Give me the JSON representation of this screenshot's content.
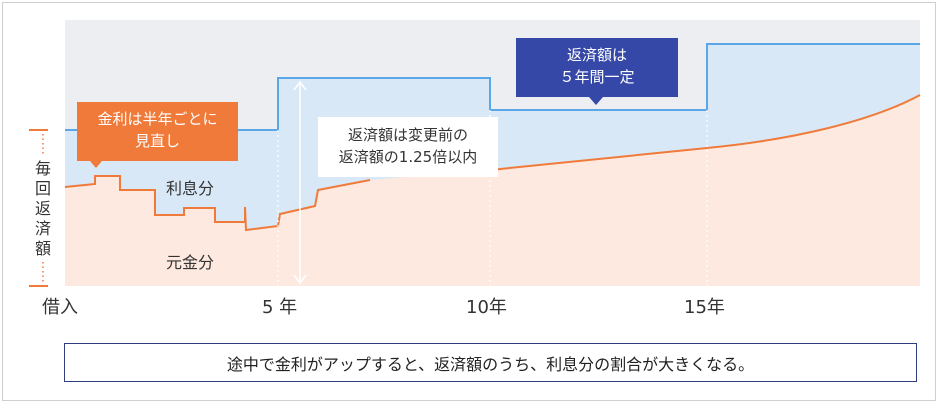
{
  "vertical_axis_label": [
    "毎",
    "回",
    "返",
    "済",
    "額"
  ],
  "region_labels": {
    "interest": "利息分",
    "principal": "元金分"
  },
  "x_axis_labels": [
    "借入",
    "5 年",
    "10年",
    "15年"
  ],
  "callouts": {
    "rate_review": [
      "金利は半年ごとに",
      "見直し"
    ],
    "fixed_payment": [
      "返済額は",
      "５年間一定"
    ],
    "cap_note": [
      "返済額は変更前の",
      "返済額の1.25倍以内"
    ]
  },
  "footer_note": "途中で金利がアップすると、返済額のうち、利息分の割合が大きくなる。",
  "colors": {
    "payment_line": "#5aa6e6",
    "payment_fill": "#d9e8f7",
    "principal_line": "#f07a3a",
    "principal_fill": "#fde9df",
    "callout_orange": "#f07a3a",
    "callout_navy": "#3548a8",
    "axis_tick": "#f07a3a"
  }
}
